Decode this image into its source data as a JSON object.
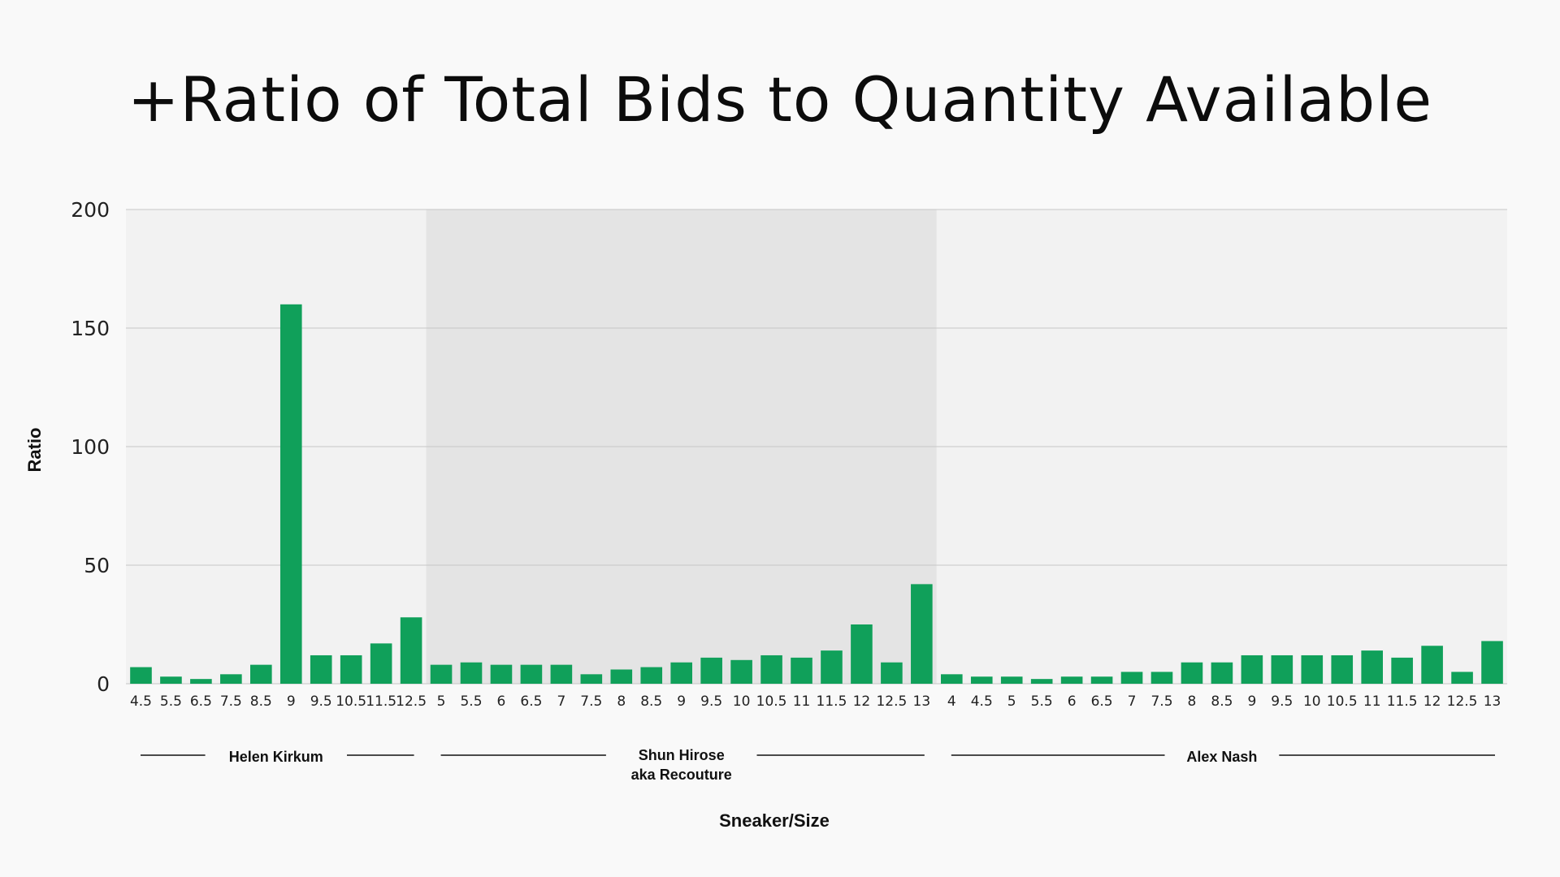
{
  "chart_data": {
    "type": "bar",
    "title": "+Ratio of Total Bids to Quantity Available",
    "xlabel": "Sneaker/Size",
    "ylabel": "Ratio",
    "ylim": [
      0,
      200
    ],
    "yticks": [
      0,
      50,
      100,
      150,
      200
    ],
    "grid": true,
    "bar_color": "#10a05a",
    "groups": [
      {
        "name_lines": [
          "Helen Kirkum"
        ],
        "band_color": "#f2f2f2",
        "categories": [
          "4.5",
          "5.5",
          "6.5",
          "7.5",
          "8.5",
          "9",
          "9.5",
          "10.5",
          "11.5",
          "12.5"
        ],
        "values": [
          7,
          3,
          2,
          4,
          8,
          160,
          12,
          12,
          17,
          28
        ]
      },
      {
        "name_lines": [
          "Shun Hirose",
          "aka Recouture"
        ],
        "band_color": "#e4e4e4",
        "categories": [
          "5",
          "5.5",
          "6",
          "6.5",
          "7",
          "7.5",
          "8",
          "8.5",
          "9",
          "9.5",
          "10",
          "10.5",
          "11",
          "11.5",
          "12",
          "12.5",
          "13"
        ],
        "values": [
          8,
          9,
          8,
          8,
          8,
          4,
          6,
          7,
          9,
          11,
          10,
          12,
          11,
          14,
          25,
          9,
          42
        ]
      },
      {
        "name_lines": [
          "Alex Nash"
        ],
        "band_color": "#f2f2f2",
        "categories": [
          "4",
          "4.5",
          "5",
          "5.5",
          "6",
          "6.5",
          "7",
          "7.5",
          "8",
          "8.5",
          "9",
          "9.5",
          "10",
          "10.5",
          "11",
          "11.5",
          "12",
          "12.5",
          "13"
        ],
        "values": [
          4,
          3,
          3,
          2,
          3,
          3,
          5,
          5,
          9,
          9,
          12,
          12,
          12,
          12,
          14,
          11,
          16,
          5,
          18
        ]
      }
    ]
  }
}
